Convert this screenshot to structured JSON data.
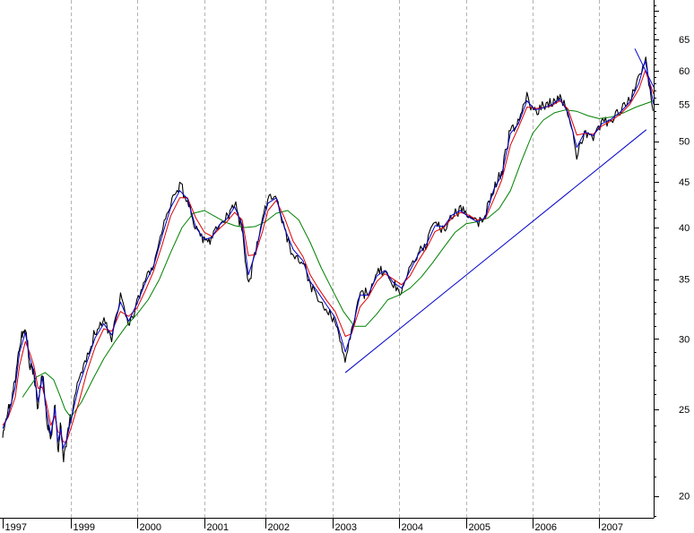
{
  "chart_data": {
    "type": "line",
    "title": "",
    "xlabel": "",
    "ylabel": "",
    "y_scale": "log",
    "ylim": [
      18.9,
      72
    ],
    "xlim": [
      "1997-01-01",
      "2007-09-25"
    ],
    "grid": "vertical dashed lines at each year tick",
    "legend": "none",
    "x_tick_labels": [
      "1997",
      "1999",
      "2000",
      "2001",
      "2002",
      "2003",
      "2004",
      "2005",
      "2006",
      "2007"
    ],
    "x_tick_dates": [
      "1997-01-01",
      "1999-01-01",
      "2000-01-01",
      "2001-01-01",
      "2002-01-01",
      "2003-01-01",
      "2004-01-01",
      "2005-01-01",
      "2006-01-01",
      "2007-01-01"
    ],
    "y_tick_labels": [
      "20",
      "25",
      "30",
      "35",
      "40",
      "45",
      "50",
      "55",
      "60",
      "65"
    ],
    "y_tick_values": [
      20,
      25,
      30,
      35,
      40,
      45,
      50,
      55,
      60,
      65
    ],
    "colors": {
      "price": "#000000",
      "fast_average": "#0000cc",
      "mid_average": "#dd0000",
      "slow_average": "#008000",
      "trendline": "#0000cc",
      "grid": "#b4b4b4"
    },
    "series": [
      {
        "role": "price",
        "x": [
          "1997-01-01",
          "1997-03-01",
          "1997-05-15",
          "1997-07-01",
          "1997-09-01",
          "1997-10-15",
          "1997-12-01",
          "1998-01-15",
          "1998-03-01",
          "1998-04-15",
          "1998-06-01",
          "1998-07-15",
          "1998-08-15",
          "1998-09-15",
          "1998-10-10",
          "1998-11-15",
          "1999-01-01",
          "1999-02-15",
          "1999-04-01",
          "1999-05-15",
          "1999-07-01",
          "1999-08-15",
          "1999-10-01",
          "1999-11-15",
          "2000-01-01",
          "2000-02-15",
          "2000-04-01",
          "2000-05-15",
          "2000-07-01",
          "2000-08-20",
          "2000-10-01",
          "2000-11-15",
          "2001-01-01",
          "2001-02-15",
          "2001-04-01",
          "2001-05-15",
          "2001-07-01",
          "2001-08-15",
          "2001-09-21",
          "2001-11-01",
          "2001-12-15",
          "2002-01-15",
          "2002-03-01",
          "2002-04-15",
          "2002-06-01",
          "2002-07-24",
          "2002-09-01",
          "2002-10-15",
          "2002-12-01",
          "2003-01-15",
          "2003-03-12",
          "2003-04-15",
          "2003-06-01",
          "2003-07-15",
          "2003-09-01",
          "2003-10-15",
          "2003-12-01",
          "2004-01-15",
          "2004-03-01",
          "2004-04-15",
          "2004-06-01",
          "2004-07-15",
          "2004-09-01",
          "2004-10-15",
          "2004-12-01",
          "2005-01-15",
          "2005-03-01",
          "2005-04-15",
          "2005-06-01",
          "2005-07-15",
          "2005-09-01",
          "2005-10-15",
          "2005-12-01",
          "2006-01-15",
          "2006-03-01",
          "2006-04-15",
          "2006-06-01",
          "2006-07-15",
          "2006-09-01",
          "2006-10-15",
          "2006-12-01",
          "2007-01-15",
          "2007-03-01",
          "2007-04-15",
          "2007-06-01",
          "2007-07-15",
          "2007-08-15",
          "2007-09-25"
        ],
        "values": [
          23.5,
          24.8,
          27.0,
          29.5,
          31.0,
          28.2,
          27.5,
          25.0,
          27.8,
          24.5,
          23.0,
          25.5,
          22.5,
          24.0,
          22.0,
          23.0,
          24.5,
          27.0,
          28.5,
          30.5,
          31.5,
          30.0,
          33.5,
          31.0,
          33.0,
          35.0,
          36.5,
          39.5,
          42.5,
          44.5,
          43.0,
          39.5,
          38.5,
          39.0,
          40.5,
          41.0,
          42.5,
          40.0,
          34.5,
          37.5,
          41.0,
          43.0,
          43.5,
          39.5,
          37.5,
          36.5,
          34.5,
          33.5,
          32.5,
          31.5,
          28.5,
          30.5,
          34.0,
          33.5,
          35.5,
          36.0,
          34.5,
          34.0,
          36.0,
          37.5,
          38.5,
          40.5,
          40.0,
          41.5,
          42.0,
          41.0,
          40.5,
          41.0,
          44.5,
          46.0,
          51.5,
          52.5,
          56.0,
          54.0,
          54.5,
          55.0,
          56.0,
          53.5,
          48.5,
          51.5,
          50.5,
          52.5,
          53.0,
          54.0,
          55.5,
          58.5,
          62.5,
          52.5
        ]
      },
      {
        "role": "fast_average",
        "x": [
          "1997-01-01",
          "1997-03-01",
          "1997-05-15",
          "1997-07-01",
          "1997-09-01",
          "1997-10-15",
          "1997-12-01",
          "1998-01-15",
          "1998-03-01",
          "1998-04-15",
          "1998-06-01",
          "1998-07-15",
          "1998-08-15",
          "1998-09-15",
          "1998-10-10",
          "1998-11-15",
          "1999-01-01",
          "1999-02-15",
          "1999-04-01",
          "1999-05-15",
          "1999-07-01",
          "1999-08-15",
          "1999-10-01",
          "1999-11-15",
          "2000-01-01",
          "2000-02-15",
          "2000-04-01",
          "2000-05-15",
          "2000-07-01",
          "2000-08-20",
          "2000-10-01",
          "2000-11-15",
          "2001-01-01",
          "2001-02-15",
          "2001-04-01",
          "2001-05-15",
          "2001-07-01",
          "2001-08-15",
          "2001-09-21",
          "2001-11-01",
          "2001-12-15",
          "2002-01-15",
          "2002-03-01",
          "2002-04-15",
          "2002-06-01",
          "2002-07-24",
          "2002-09-01",
          "2002-10-15",
          "2002-12-01",
          "2003-01-15",
          "2003-03-12",
          "2003-04-15",
          "2003-06-01",
          "2003-07-15",
          "2003-09-01",
          "2003-10-15",
          "2003-12-01",
          "2004-01-15",
          "2004-03-01",
          "2004-04-15",
          "2004-06-01",
          "2004-07-15",
          "2004-09-01",
          "2004-10-15",
          "2004-12-01",
          "2005-01-15",
          "2005-03-01",
          "2005-04-15",
          "2005-06-01",
          "2005-07-15",
          "2005-09-01",
          "2005-10-15",
          "2005-12-01",
          "2006-01-15",
          "2006-03-01",
          "2006-04-15",
          "2006-06-01",
          "2006-07-15",
          "2006-09-01",
          "2006-10-15",
          "2006-12-01",
          "2007-01-15",
          "2007-03-01",
          "2007-04-15",
          "2007-06-01",
          "2007-07-15",
          "2007-08-15",
          "2007-09-25"
        ],
        "values": [
          23.8,
          24.6,
          26.5,
          29.0,
          30.5,
          28.6,
          27.6,
          25.5,
          27.2,
          24.9,
          23.4,
          25.1,
          23.0,
          23.8,
          22.6,
          23.1,
          24.3,
          26.6,
          28.3,
          30.1,
          31.2,
          30.3,
          33.0,
          31.4,
          32.9,
          34.7,
          36.3,
          39.1,
          42.1,
          44.0,
          43.1,
          40.0,
          38.8,
          39.0,
          40.3,
          40.9,
          42.2,
          40.3,
          35.4,
          37.4,
          40.6,
          42.6,
          43.2,
          39.9,
          37.8,
          36.7,
          34.8,
          33.8,
          32.7,
          31.7,
          29.0,
          30.5,
          33.6,
          33.6,
          35.3,
          35.8,
          34.7,
          34.2,
          35.8,
          37.3,
          38.4,
          40.2,
          40.1,
          41.3,
          41.8,
          41.1,
          40.6,
          41.0,
          44.1,
          45.8,
          51.0,
          52.3,
          55.5,
          54.2,
          54.5,
          54.9,
          55.8,
          53.8,
          49.2,
          51.2,
          50.7,
          52.3,
          52.9,
          53.9,
          55.3,
          58.1,
          61.6,
          55.0
        ]
      },
      {
        "role": "mid_average",
        "x": [
          "1997-01-01",
          "1997-03-01",
          "1997-05-15",
          "1997-07-01",
          "1997-09-01",
          "1997-10-15",
          "1997-12-01",
          "1998-01-15",
          "1998-03-01",
          "1998-04-15",
          "1998-06-01",
          "1998-07-15",
          "1998-08-15",
          "1998-09-15",
          "1998-10-10",
          "1998-11-15",
          "1999-01-01",
          "1999-02-15",
          "1999-04-01",
          "1999-05-15",
          "1999-07-01",
          "1999-08-15",
          "1999-10-01",
          "1999-11-15",
          "2000-01-01",
          "2000-02-15",
          "2000-04-01",
          "2000-05-15",
          "2000-07-01",
          "2000-08-20",
          "2000-10-01",
          "2000-11-15",
          "2001-01-01",
          "2001-02-15",
          "2001-04-01",
          "2001-05-15",
          "2001-07-01",
          "2001-08-15",
          "2001-09-21",
          "2001-11-01",
          "2001-12-15",
          "2002-01-15",
          "2002-03-01",
          "2002-04-15",
          "2002-06-01",
          "2002-07-24",
          "2002-09-01",
          "2002-10-15",
          "2002-12-01",
          "2003-01-15",
          "2003-03-12",
          "2003-04-15",
          "2003-06-01",
          "2003-07-15",
          "2003-09-01",
          "2003-10-15",
          "2003-12-01",
          "2004-01-15",
          "2004-03-01",
          "2004-04-15",
          "2004-06-01",
          "2004-07-15",
          "2004-09-01",
          "2004-10-15",
          "2004-12-01",
          "2005-01-15",
          "2005-03-01",
          "2005-04-15",
          "2005-06-01",
          "2005-07-15",
          "2005-09-01",
          "2005-10-15",
          "2005-12-01",
          "2006-01-15",
          "2006-03-01",
          "2006-04-15",
          "2006-06-01",
          "2006-07-15",
          "2006-09-01",
          "2006-10-15",
          "2006-12-01",
          "2007-01-15",
          "2007-03-01",
          "2007-04-15",
          "2007-06-01",
          "2007-07-15",
          "2007-08-15",
          "2007-09-25"
        ],
        "values": [
          24.0,
          24.5,
          25.8,
          28.0,
          29.8,
          29.0,
          28.0,
          26.4,
          26.5,
          25.4,
          24.0,
          24.6,
          23.6,
          23.5,
          23.0,
          23.0,
          23.8,
          25.5,
          27.6,
          29.4,
          30.8,
          30.6,
          32.2,
          31.8,
          32.5,
          34.0,
          35.8,
          38.2,
          41.2,
          43.2,
          43.2,
          41.0,
          39.5,
          39.1,
          39.9,
          40.6,
          41.6,
          40.8,
          37.2,
          37.3,
          39.6,
          41.8,
          42.9,
          41.0,
          38.6,
          37.1,
          35.4,
          34.2,
          33.1,
          32.2,
          30.2,
          30.4,
          32.6,
          33.4,
          34.8,
          35.5,
          35.0,
          34.5,
          35.3,
          36.7,
          38.0,
          39.6,
          40.0,
          41.0,
          41.6,
          41.3,
          40.8,
          40.9,
          43.0,
          45.2,
          49.5,
          51.8,
          54.6,
          54.4,
          54.5,
          54.8,
          55.5,
          54.3,
          50.8,
          51.0,
          50.9,
          52.0,
          52.7,
          53.6,
          55.0,
          57.2,
          60.0,
          56.5
        ]
      },
      {
        "role": "slow_average",
        "x": [
          "1997-08-01",
          "1997-10-15",
          "1998-01-01",
          "1998-04-01",
          "1998-07-01",
          "1998-09-01",
          "1998-11-01",
          "1999-01-01",
          "1999-03-01",
          "1999-05-01",
          "1999-07-01",
          "1999-09-01",
          "1999-11-01",
          "2000-01-01",
          "2000-03-01",
          "2000-05-01",
          "2000-07-01",
          "2000-09-01",
          "2000-11-01",
          "2001-01-01",
          "2001-03-01",
          "2001-05-01",
          "2001-07-01",
          "2001-09-01",
          "2001-11-01",
          "2002-01-01",
          "2002-03-01",
          "2002-05-01",
          "2002-07-01",
          "2002-09-01",
          "2002-11-01",
          "2003-01-01",
          "2003-03-01",
          "2003-05-01",
          "2003-07-01",
          "2003-09-01",
          "2003-11-01",
          "2004-01-01",
          "2004-03-01",
          "2004-05-01",
          "2004-07-01",
          "2004-09-01",
          "2004-11-01",
          "2005-01-01",
          "2005-03-01",
          "2005-05-01",
          "2005-07-01",
          "2005-09-01",
          "2005-11-01",
          "2006-01-01",
          "2006-03-01",
          "2006-05-01",
          "2006-07-01",
          "2006-09-01",
          "2006-11-01",
          "2007-01-01",
          "2007-03-01",
          "2007-05-01",
          "2007-07-01",
          "2007-09-25"
        ],
        "values": [
          25.8,
          26.5,
          27.2,
          27.5,
          27.0,
          26.0,
          25.0,
          24.5,
          25.5,
          27.0,
          28.5,
          29.8,
          31.0,
          32.0,
          33.2,
          35.0,
          37.5,
          40.0,
          41.5,
          41.8,
          41.2,
          40.6,
          40.2,
          40.0,
          40.1,
          40.6,
          41.5,
          41.8,
          40.8,
          38.5,
          36.0,
          34.0,
          32.2,
          31.0,
          31.0,
          32.0,
          33.2,
          33.6,
          34.2,
          35.2,
          36.5,
          38.0,
          39.5,
          40.4,
          40.6,
          41.0,
          42.0,
          44.0,
          47.5,
          51.0,
          52.8,
          53.8,
          54.2,
          54.0,
          53.4,
          53.0,
          53.2,
          53.8,
          54.6,
          55.5
        ]
      },
      {
        "role": "trendline",
        "x": [
          "2003-03-12",
          "2007-08-20"
        ],
        "values": [
          27.5,
          51.5
        ]
      },
      {
        "role": "trendline",
        "x": [
          "2007-06-25",
          "2007-09-25"
        ],
        "values": [
          63.5,
          57.5
        ]
      }
    ]
  }
}
